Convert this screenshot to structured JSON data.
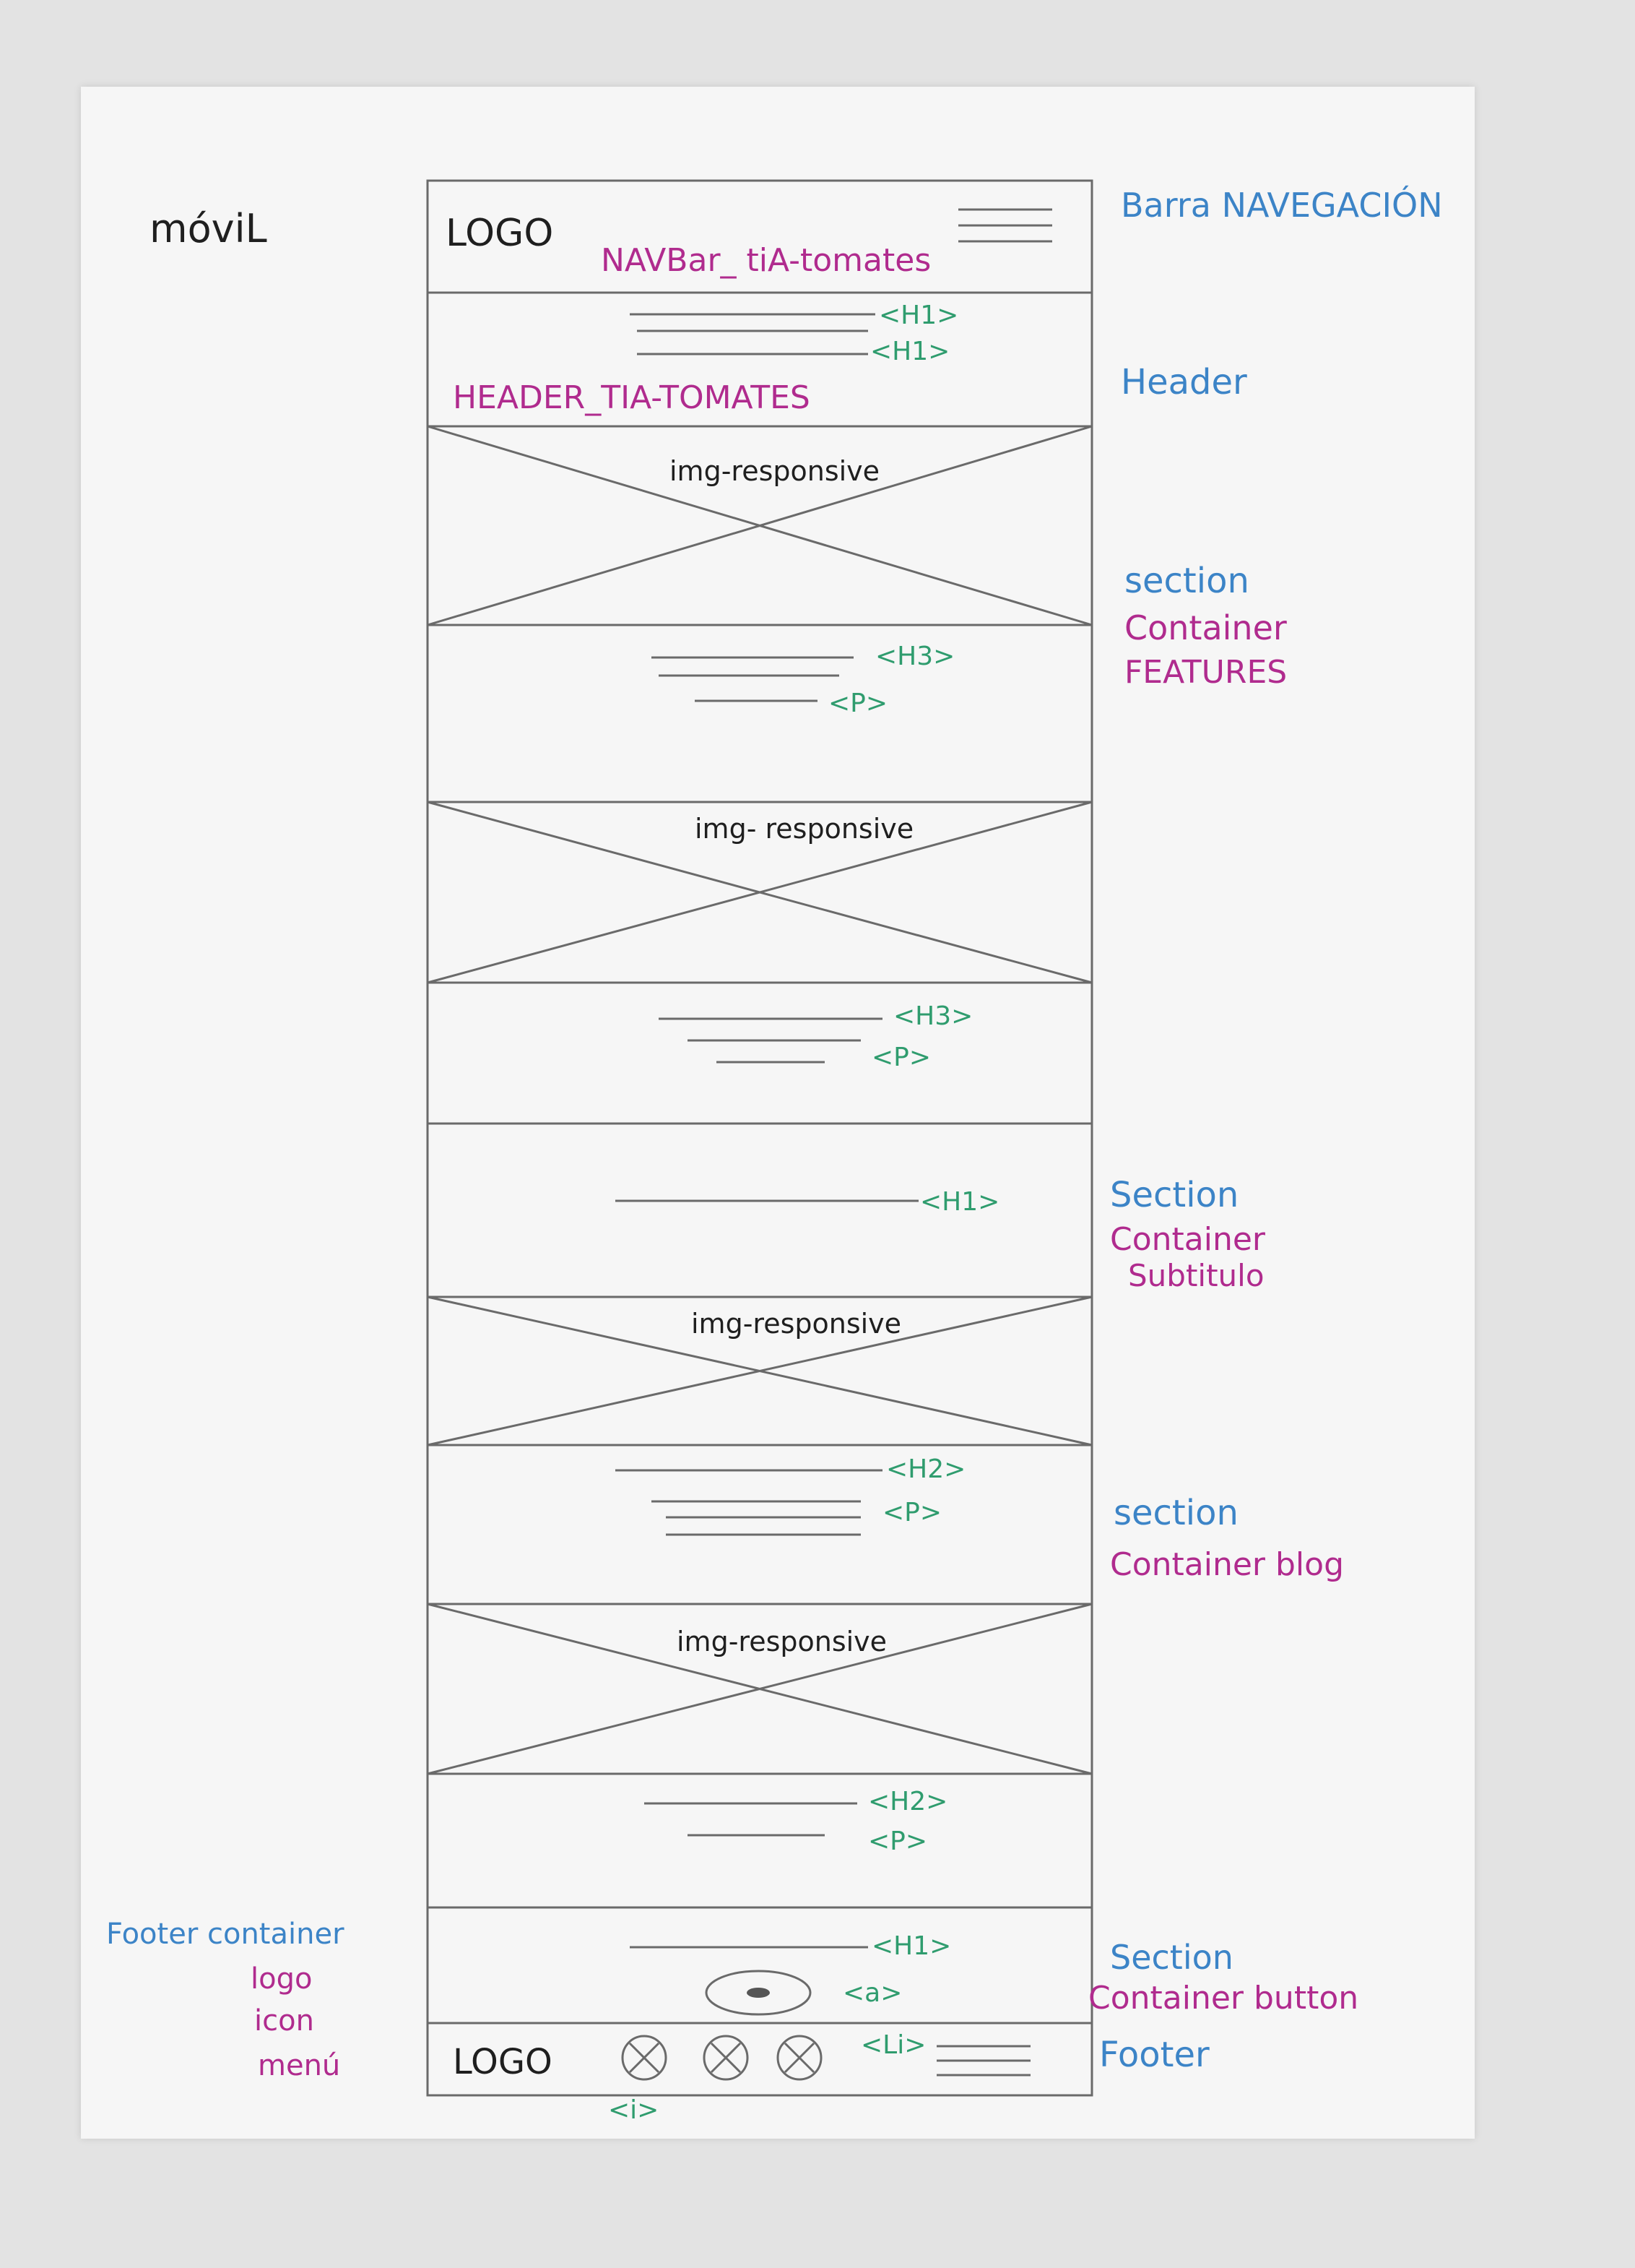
{
  "title": "móviL",
  "colors": {
    "paper": "#f6f6f6",
    "pencil": "#6a6a6a",
    "blue": "#3c84c7",
    "magenta": "#b02b8e",
    "green": "#2f9c6e",
    "black": "#1f1f1f"
  },
  "navbar": {
    "logo": "LOGO",
    "name": "NAVBar_ tiA-tomates",
    "side_label": "Barra NAVEGACIÓN",
    "icon": "hamburger-menu-icon"
  },
  "header": {
    "tags": [
      "<H1>",
      "<H1>"
    ],
    "name": "HEADER_TIA-TOMATES",
    "side_label": "Header"
  },
  "features": {
    "img1_label": "img-responsive",
    "text1_tags": [
      "<H3>",
      "<P>"
    ],
    "img2_label": "img- responsive",
    "text2_tags": [
      "<H3>",
      "<P>"
    ],
    "side_label_1": "section",
    "side_label_2": "Container",
    "side_label_3": "FEATURES"
  },
  "subtitle": {
    "tag": "<H1>",
    "side_label_1": "Section",
    "side_label_2": "Container",
    "side_label_3": "Subtitulo"
  },
  "blog": {
    "img1_label": "img-responsive",
    "text1_tags": [
      "<H2>",
      "<P>"
    ],
    "img2_label": "img-responsive",
    "text2_tags": [
      "<H2>",
      "<P>"
    ],
    "side_label_1": "section",
    "side_label_2": "Container blog"
  },
  "button_section": {
    "tags": [
      "<H1>",
      "<a>"
    ],
    "side_label_1": "Section",
    "side_label_2": "Container button"
  },
  "footer": {
    "logo": "LOGO",
    "li_tag": "<Li>",
    "i_tag": "<i>",
    "side_label": "Footer",
    "note_1": "Footer container",
    "note_2": "logo",
    "note_3": "icon",
    "note_4": "menú"
  }
}
